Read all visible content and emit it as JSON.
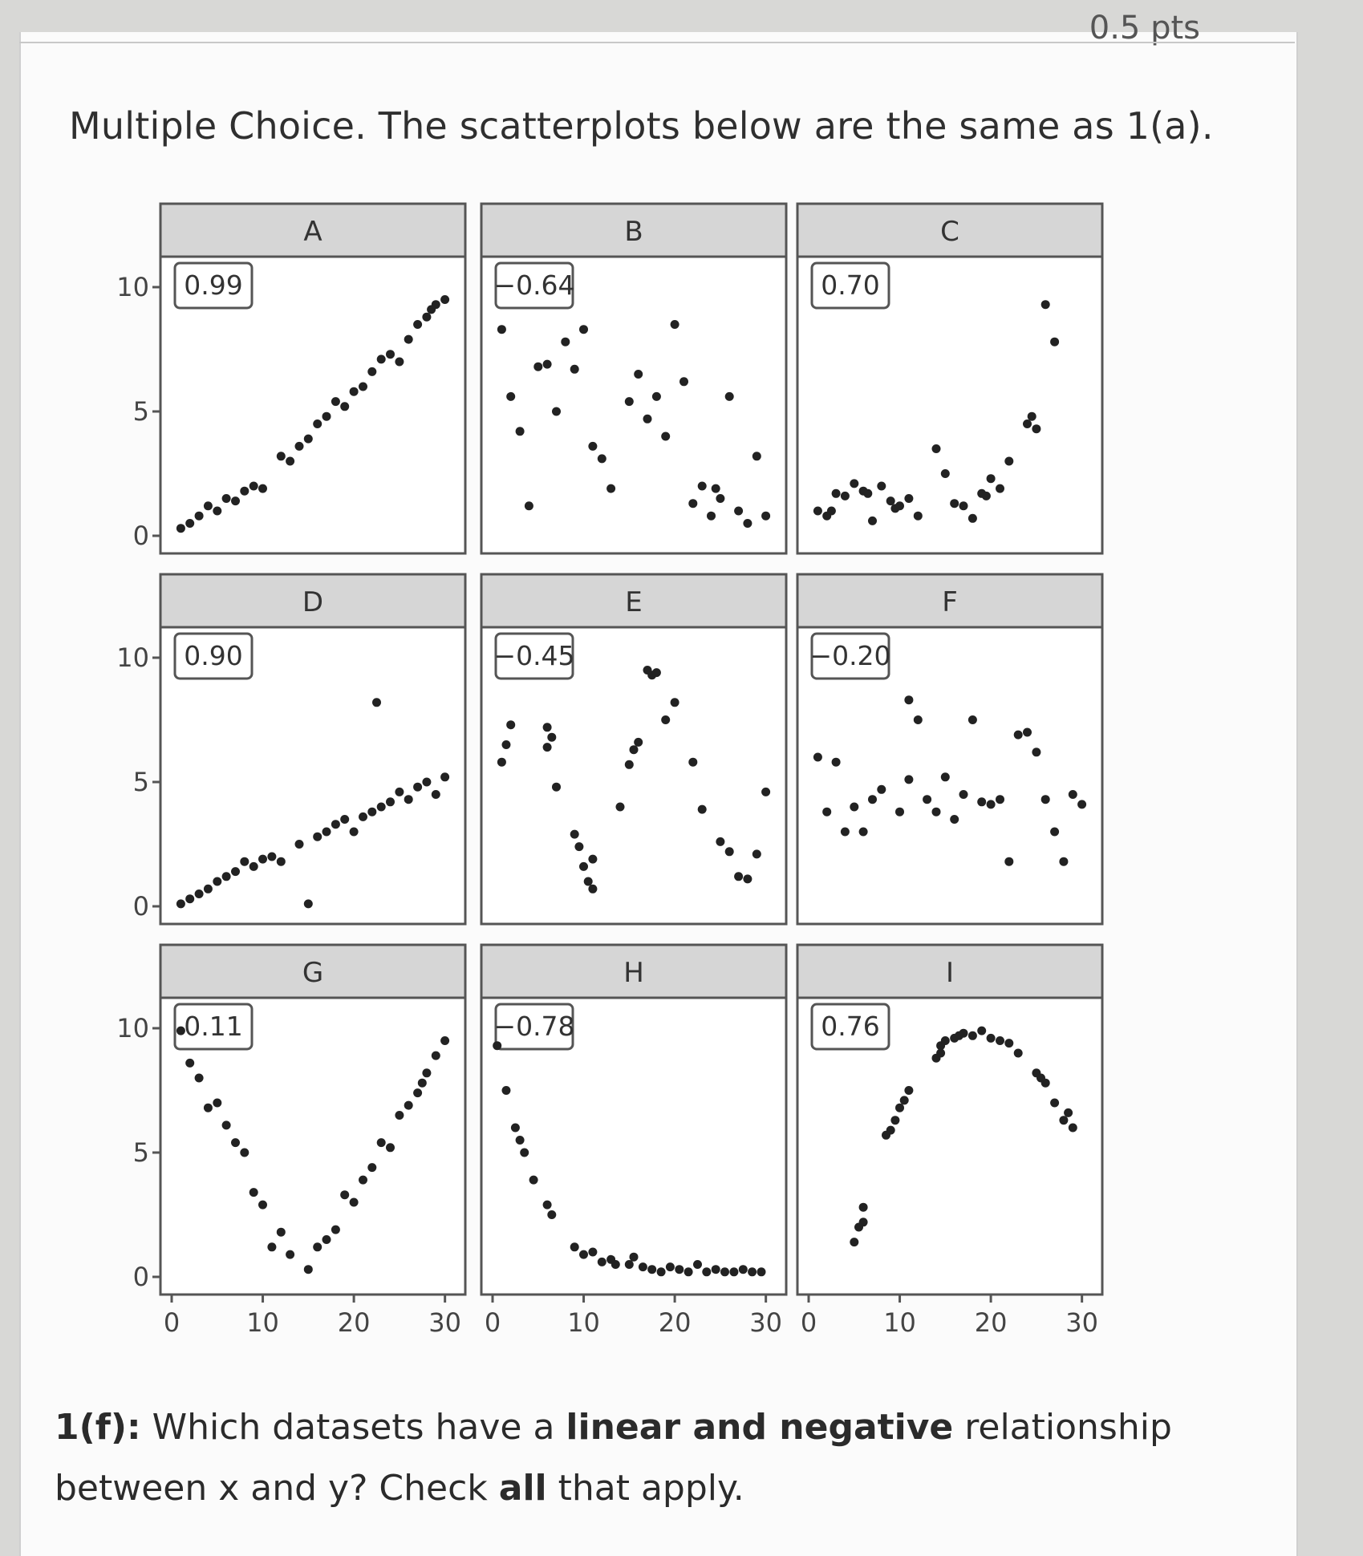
{
  "header": {
    "points_label": "0.5 pts"
  },
  "prompt": "Multiple Choice. The scatterplots below are the same as 1(a).",
  "question": {
    "prefix": "1(f):",
    "part1": " Which datasets have a ",
    "bold1": "linear and negative",
    "part2": " relationship between x and y? Check ",
    "bold2": "all",
    "part3": " that apply."
  },
  "chart_data": {
    "type": "scatter",
    "layout": "3x3 facets",
    "xlim": [
      0,
      31
    ],
    "ylim": [
      0,
      10
    ],
    "xticks": [
      "0",
      "10",
      "20",
      "30"
    ],
    "yticks": [
      "0",
      "5",
      "10"
    ],
    "panels": [
      {
        "label": "A",
        "r": "0.99",
        "points": [
          [
            1,
            0.3
          ],
          [
            2,
            0.5
          ],
          [
            3,
            0.8
          ],
          [
            4,
            1.2
          ],
          [
            5,
            1.0
          ],
          [
            6,
            1.5
          ],
          [
            7,
            1.4
          ],
          [
            8,
            1.8
          ],
          [
            9,
            2.0
          ],
          [
            10,
            1.9
          ],
          [
            12,
            3.2
          ],
          [
            13,
            3.0
          ],
          [
            14,
            3.6
          ],
          [
            15,
            3.9
          ],
          [
            16,
            4.5
          ],
          [
            17,
            4.8
          ],
          [
            18,
            5.4
          ],
          [
            19,
            5.2
          ],
          [
            20,
            5.8
          ],
          [
            21,
            6.0
          ],
          [
            22,
            6.6
          ],
          [
            23,
            7.1
          ],
          [
            24,
            7.3
          ],
          [
            25,
            7.0
          ],
          [
            26,
            7.9
          ],
          [
            27,
            8.5
          ],
          [
            28,
            8.8
          ],
          [
            29,
            9.3
          ],
          [
            30,
            9.5
          ],
          [
            28.5,
            9.1
          ]
        ]
      },
      {
        "label": "B",
        "r": "−0.64",
        "points": [
          [
            1,
            8.3
          ],
          [
            2,
            5.6
          ],
          [
            3,
            4.2
          ],
          [
            4,
            1.2
          ],
          [
            5,
            6.8
          ],
          [
            6,
            6.9
          ],
          [
            7,
            5.0
          ],
          [
            8,
            7.8
          ],
          [
            9,
            6.7
          ],
          [
            10,
            8.3
          ],
          [
            11,
            3.6
          ],
          [
            12,
            3.1
          ],
          [
            13,
            1.9
          ],
          [
            15,
            5.4
          ],
          [
            16,
            6.5
          ],
          [
            17,
            4.7
          ],
          [
            18,
            5.6
          ],
          [
            19,
            4.0
          ],
          [
            20,
            8.5
          ],
          [
            21,
            6.2
          ],
          [
            22,
            1.3
          ],
          [
            23,
            2.0
          ],
          [
            24,
            0.8
          ],
          [
            25,
            1.5
          ],
          [
            26,
            5.6
          ],
          [
            27,
            1.0
          ],
          [
            28,
            0.5
          ],
          [
            29,
            3.2
          ],
          [
            30,
            0.8
          ],
          [
            24.5,
            1.9
          ]
        ]
      },
      {
        "label": "C",
        "r": "0.70",
        "points": [
          [
            1,
            1.0
          ],
          [
            2,
            0.8
          ],
          [
            3,
            1.7
          ],
          [
            4,
            1.6
          ],
          [
            5,
            2.1
          ],
          [
            6,
            1.8
          ],
          [
            7,
            0.6
          ],
          [
            8,
            2.0
          ],
          [
            9,
            1.4
          ],
          [
            10,
            1.2
          ],
          [
            11,
            1.5
          ],
          [
            12,
            0.8
          ],
          [
            14,
            3.5
          ],
          [
            15,
            2.5
          ],
          [
            16,
            1.3
          ],
          [
            17,
            1.2
          ],
          [
            18,
            0.7
          ],
          [
            19,
            1.7
          ],
          [
            20,
            2.3
          ],
          [
            21,
            1.9
          ],
          [
            22,
            3.0
          ],
          [
            24,
            4.5
          ],
          [
            25,
            4.3
          ],
          [
            26,
            9.3
          ],
          [
            27,
            7.8
          ],
          [
            24.5,
            4.8
          ],
          [
            19.5,
            1.6
          ],
          [
            2.5,
            1.0
          ],
          [
            9.5,
            1.1
          ],
          [
            6.5,
            1.7
          ]
        ]
      },
      {
        "label": "D",
        "r": "0.90",
        "points": [
          [
            1,
            0.1
          ],
          [
            2,
            0.3
          ],
          [
            3,
            0.5
          ],
          [
            4,
            0.7
          ],
          [
            5,
            1.0
          ],
          [
            6,
            1.2
          ],
          [
            7,
            1.4
          ],
          [
            8,
            1.8
          ],
          [
            9,
            1.6
          ],
          [
            10,
            1.9
          ],
          [
            11,
            2.0
          ],
          [
            12,
            1.8
          ],
          [
            14,
            2.5
          ],
          [
            15,
            0.1
          ],
          [
            16,
            2.8
          ],
          [
            17,
            3.0
          ],
          [
            18,
            3.3
          ],
          [
            19,
            3.5
          ],
          [
            20,
            3.0
          ],
          [
            21,
            3.6
          ],
          [
            22,
            3.8
          ],
          [
            22.5,
            8.2
          ],
          [
            23,
            4.0
          ],
          [
            24,
            4.2
          ],
          [
            25,
            4.6
          ],
          [
            26,
            4.3
          ],
          [
            27,
            4.8
          ],
          [
            28,
            5.0
          ],
          [
            29,
            4.5
          ],
          [
            30,
            5.2
          ]
        ]
      },
      {
        "label": "E",
        "r": "−0.45",
        "points": [
          [
            1,
            5.8
          ],
          [
            1.5,
            6.5
          ],
          [
            2,
            7.3
          ],
          [
            6,
            7.2
          ],
          [
            6.5,
            6.8
          ],
          [
            6,
            6.4
          ],
          [
            7,
            4.8
          ],
          [
            9,
            2.9
          ],
          [
            9.5,
            2.4
          ],
          [
            10,
            1.6
          ],
          [
            10.5,
            1.0
          ],
          [
            11,
            0.7
          ],
          [
            11,
            1.9
          ],
          [
            14,
            4.0
          ],
          [
            15,
            5.7
          ],
          [
            15.5,
            6.3
          ],
          [
            16,
            6.6
          ],
          [
            17,
            9.5
          ],
          [
            17.5,
            9.3
          ],
          [
            18,
            9.4
          ],
          [
            19,
            7.5
          ],
          [
            20,
            8.2
          ],
          [
            22,
            5.8
          ],
          [
            23,
            3.9
          ],
          [
            25,
            2.6
          ],
          [
            26,
            2.2
          ],
          [
            27,
            1.2
          ],
          [
            28,
            1.1
          ],
          [
            29,
            2.1
          ],
          [
            30,
            4.6
          ]
        ]
      },
      {
        "label": "F",
        "r": "−0.20",
        "points": [
          [
            1,
            6.0
          ],
          [
            2,
            3.8
          ],
          [
            3,
            5.8
          ],
          [
            4,
            3.0
          ],
          [
            5,
            4.0
          ],
          [
            6,
            3.0
          ],
          [
            7,
            4.3
          ],
          [
            8,
            4.7
          ],
          [
            10,
            3.8
          ],
          [
            11,
            5.1
          ],
          [
            12,
            7.5
          ],
          [
            13,
            4.3
          ],
          [
            14,
            3.8
          ],
          [
            15,
            5.2
          ],
          [
            16,
            3.5
          ],
          [
            17,
            4.5
          ],
          [
            18,
            7.5
          ],
          [
            19,
            4.2
          ],
          [
            20,
            4.1
          ],
          [
            21,
            4.3
          ],
          [
            22,
            1.8
          ],
          [
            23,
            6.9
          ],
          [
            24,
            7.0
          ],
          [
            25,
            6.2
          ],
          [
            26,
            4.3
          ],
          [
            27,
            3.0
          ],
          [
            28,
            1.8
          ],
          [
            29,
            4.5
          ],
          [
            30,
            4.1
          ],
          [
            11,
            8.3
          ]
        ]
      },
      {
        "label": "G",
        "r": "0.11",
        "points": [
          [
            1,
            9.9
          ],
          [
            2,
            8.6
          ],
          [
            3,
            8.0
          ],
          [
            4,
            6.8
          ],
          [
            6,
            6.1
          ],
          [
            7,
            5.4
          ],
          [
            8,
            5.0
          ],
          [
            9,
            3.4
          ],
          [
            10,
            2.9
          ],
          [
            11,
            1.2
          ],
          [
            12,
            1.8
          ],
          [
            15,
            0.3
          ],
          [
            16,
            1.2
          ],
          [
            17,
            1.5
          ],
          [
            18,
            1.9
          ],
          [
            19,
            3.3
          ],
          [
            20,
            3.0
          ],
          [
            21,
            3.9
          ],
          [
            22,
            4.4
          ],
          [
            23,
            5.4
          ],
          [
            24,
            5.2
          ],
          [
            25,
            6.5
          ],
          [
            26,
            6.9
          ],
          [
            27,
            7.4
          ],
          [
            28,
            8.2
          ],
          [
            29,
            8.9
          ],
          [
            30,
            9.5
          ],
          [
            5,
            7.0
          ],
          [
            13,
            0.9
          ],
          [
            27.5,
            7.8
          ]
        ]
      },
      {
        "label": "H",
        "r": "−0.78",
        "points": [
          [
            0.5,
            9.3
          ],
          [
            1.5,
            7.5
          ],
          [
            2.5,
            6.0
          ],
          [
            3,
            5.5
          ],
          [
            3.5,
            5.0
          ],
          [
            4.5,
            3.9
          ],
          [
            6,
            2.9
          ],
          [
            6.5,
            2.5
          ],
          [
            9,
            1.2
          ],
          [
            10,
            0.9
          ],
          [
            11,
            1.0
          ],
          [
            12,
            0.6
          ],
          [
            13,
            0.7
          ],
          [
            15,
            0.5
          ],
          [
            15.5,
            0.8
          ],
          [
            16.5,
            0.4
          ],
          [
            17.5,
            0.3
          ],
          [
            18.5,
            0.2
          ],
          [
            19.5,
            0.4
          ],
          [
            20.5,
            0.3
          ],
          [
            21.5,
            0.2
          ],
          [
            22.5,
            0.5
          ],
          [
            23.5,
            0.2
          ],
          [
            24.5,
            0.3
          ],
          [
            25.5,
            0.2
          ],
          [
            26.5,
            0.2
          ],
          [
            27.5,
            0.3
          ],
          [
            28.5,
            0.2
          ],
          [
            29.5,
            0.2
          ],
          [
            13.5,
            0.5
          ]
        ]
      },
      {
        "label": "I",
        "r": "0.76",
        "points": [
          [
            5,
            1.4
          ],
          [
            5.5,
            2.0
          ],
          [
            6,
            2.8
          ],
          [
            8.5,
            5.7
          ],
          [
            9,
            5.9
          ],
          [
            9.5,
            6.3
          ],
          [
            10,
            6.8
          ],
          [
            11,
            7.5
          ],
          [
            14,
            8.8
          ],
          [
            14.5,
            9.3
          ],
          [
            15,
            9.5
          ],
          [
            16,
            9.6
          ],
          [
            17,
            9.8
          ],
          [
            18,
            9.7
          ],
          [
            19,
            9.9
          ],
          [
            21,
            9.5
          ],
          [
            22,
            9.4
          ],
          [
            23,
            9.0
          ],
          [
            25,
            8.2
          ],
          [
            26,
            7.8
          ],
          [
            27,
            7.0
          ],
          [
            28,
            6.3
          ],
          [
            29,
            6.0
          ],
          [
            14.5,
            9.0
          ],
          [
            20,
            9.6
          ],
          [
            25.5,
            8.0
          ],
          [
            28.5,
            6.6
          ],
          [
            6,
            2.2
          ],
          [
            10.5,
            7.1
          ],
          [
            16.5,
            9.7
          ]
        ]
      }
    ]
  }
}
